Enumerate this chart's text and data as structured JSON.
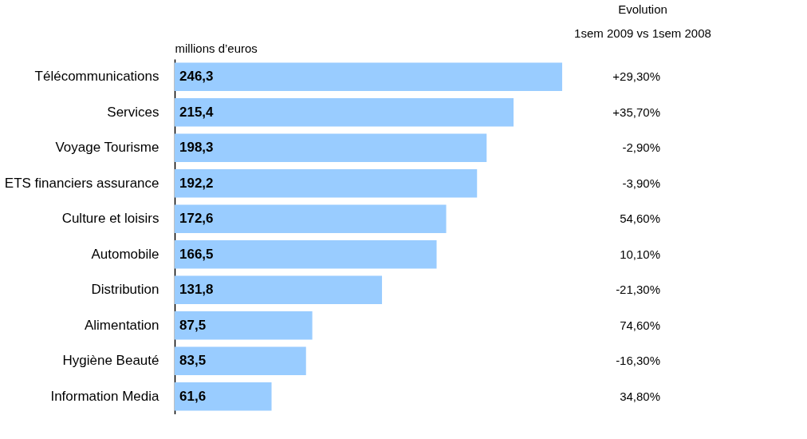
{
  "chart_data": {
    "type": "bar",
    "orientation": "horizontal",
    "xlabel": "millions d’euros",
    "categories": [
      "Télécommunications",
      "Services",
      "Voyage Tourisme",
      "ETS financiers assurance",
      "Culture et loisirs",
      "Automobile",
      "Distribution",
      "Alimentation",
      "Hygiène Beauté",
      "Information Media"
    ],
    "values": [
      246.3,
      215.4,
      198.3,
      192.2,
      172.6,
      166.5,
      131.8,
      87.5,
      83.5,
      61.6
    ],
    "value_labels": [
      "246,3",
      "215,4",
      "198,3",
      "192,2",
      "172,6",
      "166,5",
      "131,8",
      "87,5",
      "83,5",
      "61,6"
    ],
    "color": "#99ccff",
    "tick_labels": "y",
    "grid": false,
    "annotations": [
      "Evolution",
      "1sem 2009 vs 1sem 2008",
      "+29,30%",
      "+35,70%",
      "-2,90%",
      "-3,90%",
      "54,60%",
      "10,10%",
      "-21,30%",
      "74,60%",
      "-16,30%",
      "34,80%"
    ]
  }
}
